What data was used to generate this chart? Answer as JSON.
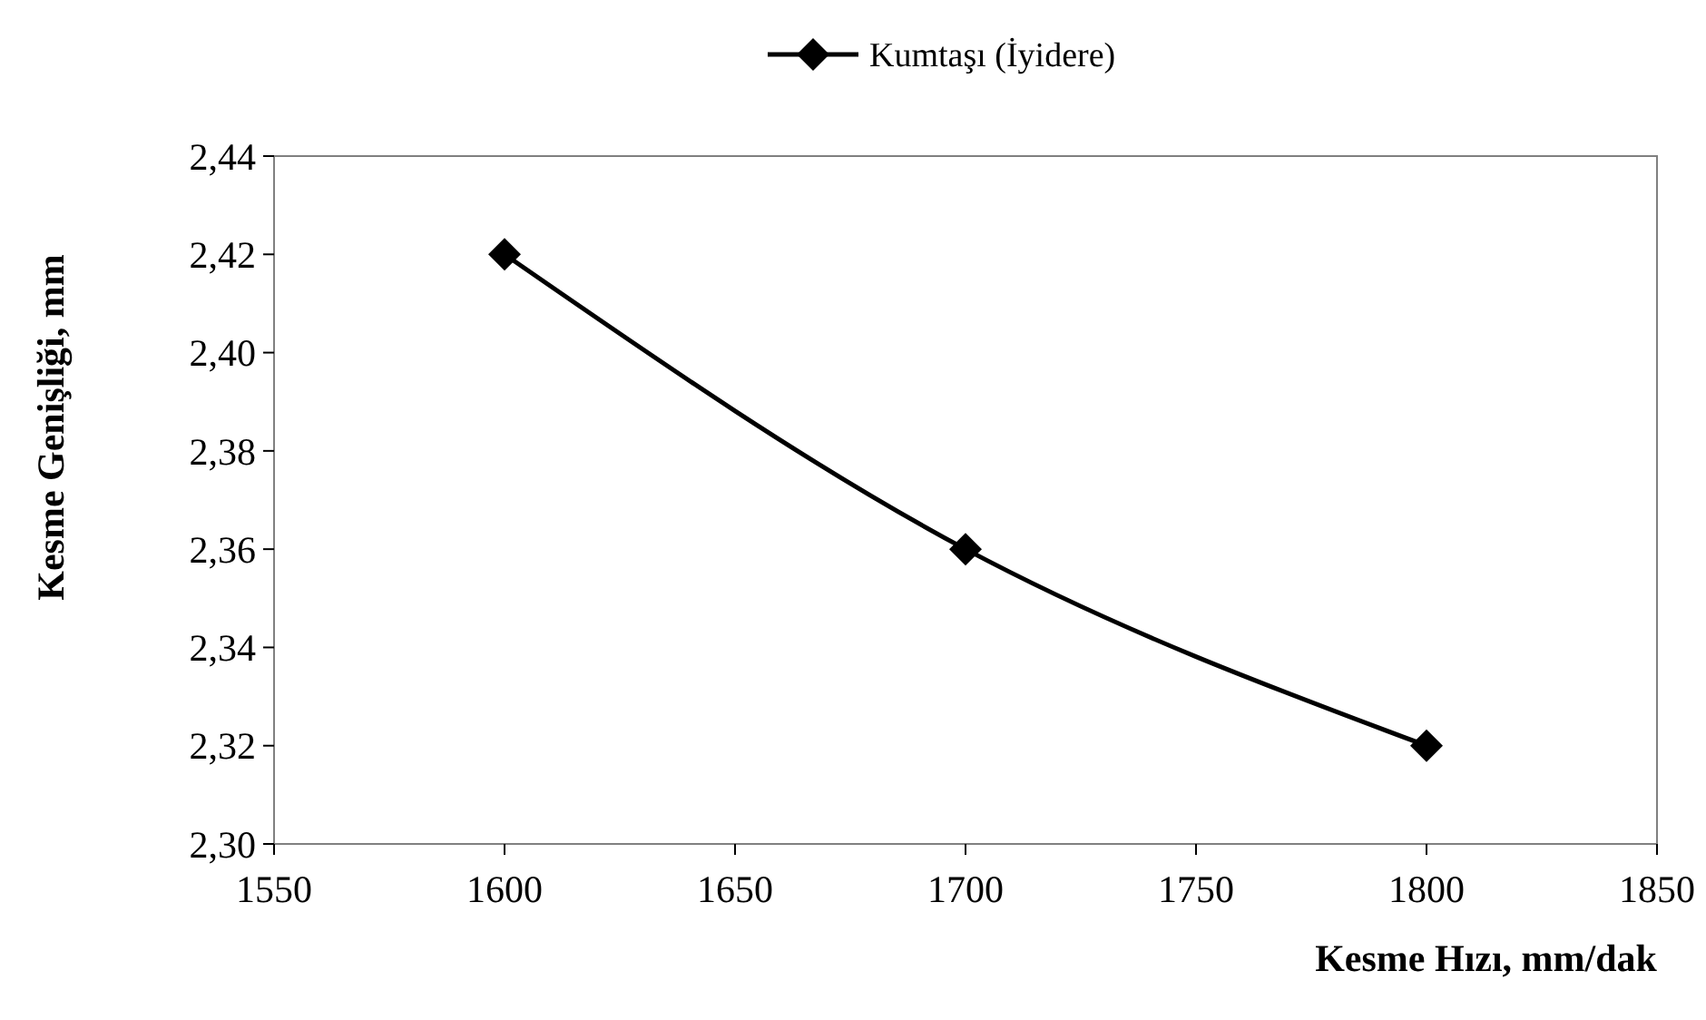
{
  "chart_data": {
    "type": "line",
    "xlabel": "Kesme Hızı, mm/dak",
    "ylabel": "Kesme Genişliği, mm",
    "x": [
      1600,
      1700,
      1800
    ],
    "series": [
      {
        "name": "Kumtaşı (İyidere)",
        "color": "#000000",
        "values": [
          2.42,
          2.36,
          2.32
        ]
      }
    ],
    "xlim": [
      1550,
      1850
    ],
    "xticks": [
      1550,
      1600,
      1650,
      1700,
      1750,
      1800,
      1850
    ],
    "ylim": [
      2.3,
      2.44
    ],
    "yticks": [
      {
        "value": 2.3,
        "label": "2,30"
      },
      {
        "value": 2.32,
        "label": "2,32"
      },
      {
        "value": 2.34,
        "label": "2,34"
      },
      {
        "value": 2.36,
        "label": "2,36"
      },
      {
        "value": 2.38,
        "label": "2,38"
      },
      {
        "value": 2.4,
        "label": "2,40"
      },
      {
        "value": 2.42,
        "label": "2,42"
      },
      {
        "value": 2.44,
        "label": "2,44"
      }
    ],
    "grid": false,
    "legend": "top",
    "marker": "diamond",
    "line_style": "solid"
  }
}
